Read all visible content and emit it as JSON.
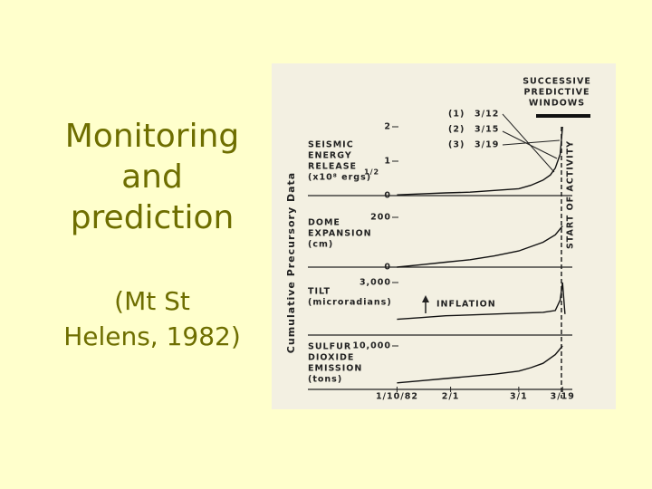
{
  "slide": {
    "title_lines": [
      "Monitoring",
      "and",
      "prediction"
    ],
    "subtitle_lines": [
      "(Mt St",
      "Helens, 1982)"
    ]
  },
  "figure": {
    "y_axis_label": "Cumulative Precursory Data",
    "windows_title_lines": [
      "SUCCESSIVE",
      "PREDICTIVE",
      "WINDOWS"
    ],
    "windows": [
      [
        "(1)",
        "3/12"
      ],
      [
        "(2)",
        "3/15"
      ],
      [
        "(3)",
        "3/19"
      ]
    ],
    "start_label": "START OF ACTIVITY",
    "inflation_label": "INFLATION"
  },
  "chart_data": [
    {
      "type": "line",
      "label_lines": [
        "SEISMIC",
        "ENERGY",
        "RELEASE",
        "(x10⁸ ergs)"
      ],
      "label_exponent": "1/2",
      "xlim": [
        -5,
        72
      ],
      "ylim": [
        0,
        2
      ],
      "yticks": [
        0,
        1,
        2
      ],
      "x": [
        0,
        10,
        20,
        30,
        40,
        50,
        55,
        60,
        63,
        65,
        67,
        68
      ],
      "values": [
        0.02,
        0.05,
        0.08,
        0.1,
        0.15,
        0.2,
        0.3,
        0.45,
        0.6,
        0.8,
        1.2,
        2.0
      ]
    },
    {
      "type": "line",
      "label_lines": [
        "DOME",
        "EXPANSION",
        "(cm)"
      ],
      "xlim": [
        -5,
        72
      ],
      "ylim": [
        0,
        200
      ],
      "yticks": [
        0,
        200
      ],
      "x": [
        0,
        10,
        20,
        30,
        40,
        50,
        60,
        65,
        68
      ],
      "values": [
        0,
        10,
        20,
        30,
        45,
        65,
        100,
        130,
        165
      ]
    },
    {
      "type": "line",
      "label_lines": [
        "TILT",
        "(microradians)"
      ],
      "xlim": [
        -5,
        72
      ],
      "ylim": [
        0,
        3000
      ],
      "yticks": [
        {
          "value": 3000,
          "label": "3,000"
        }
      ],
      "x": [
        0,
        10,
        20,
        30,
        40,
        50,
        60,
        65,
        67,
        68,
        69
      ],
      "values": [
        900,
        1000,
        1100,
        1150,
        1200,
        1250,
        1300,
        1400,
        2000,
        3000,
        1200
      ]
    },
    {
      "type": "line",
      "label_lines": [
        "SULFUR",
        "DIOXIDE",
        "EMISSION",
        "(tons)"
      ],
      "xlim": [
        -5,
        72
      ],
      "ylim": [
        0,
        10000
      ],
      "yticks": [
        {
          "value": 10000,
          "label": "10,000"
        }
      ],
      "xticks": [
        {
          "value": 0,
          "label": "1/10/82"
        },
        {
          "value": 22,
          "label": "2/1"
        },
        {
          "value": 50,
          "label": "3/1"
        },
        {
          "value": 68,
          "label": "3/19"
        }
      ],
      "x": [
        0,
        10,
        20,
        30,
        40,
        50,
        55,
        60,
        65,
        68
      ],
      "values": [
        1500,
        2000,
        2500,
        3000,
        3500,
        4200,
        5000,
        6000,
        8000,
        10000
      ]
    }
  ]
}
